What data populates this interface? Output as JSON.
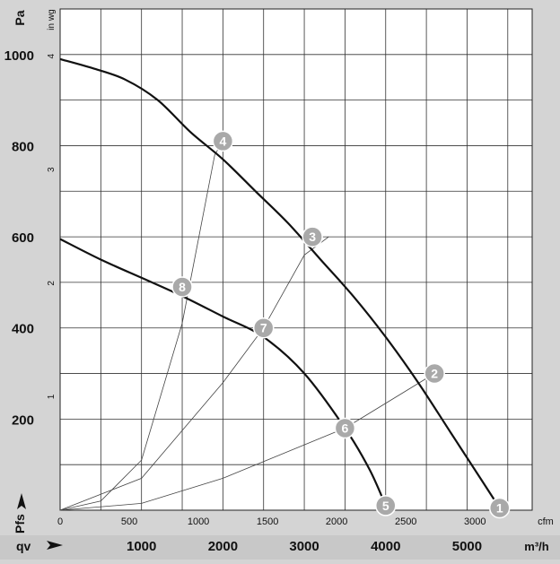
{
  "chart_data": {
    "type": "line",
    "title": "",
    "y_left_unit": "Pa",
    "y_inner_unit": "in wg",
    "x_top_unit": "cfm",
    "x_bottom_unit": "m³/h",
    "y_symbol": "Pfs",
    "x_symbol": "qv",
    "y_ticks_pa": [
      200,
      400,
      600,
      800,
      1000
    ],
    "y_ticks_inwg": [
      1,
      2,
      3,
      4
    ],
    "x_ticks_cfm": [
      0,
      500,
      1000,
      1500,
      2000,
      2500,
      3000
    ],
    "x_ticks_m3h": [
      1000,
      2000,
      3000,
      4000,
      5000
    ],
    "xlim_m3h": [
      0,
      5800
    ],
    "ylim_pa": [
      0,
      1100
    ],
    "grid": true,
    "series": [
      {
        "kind": "fan-curve",
        "x": [
          0,
          400,
          800,
          1200,
          1600,
          2000,
          2400,
          2800,
          3200,
          3600,
          4000,
          4400,
          4800,
          5200,
          5400
        ],
        "y": [
          990,
          970,
          945,
          900,
          830,
          770,
          700,
          630,
          550,
          470,
          380,
          280,
          170,
          60,
          5
        ]
      },
      {
        "kind": "fan-curve",
        "x": [
          0,
          500,
          1000,
          1500,
          2000,
          2500,
          3000,
          3500,
          3800,
          4000
        ],
        "y": [
          595,
          550,
          510,
          470,
          425,
          380,
          300,
          180,
          90,
          10
        ]
      },
      {
        "kind": "system-curve",
        "x": [
          0,
          500,
          1000,
          1500,
          1900,
          2000
        ],
        "y": [
          0,
          20,
          110,
          410,
          780,
          810
        ]
      },
      {
        "kind": "system-curve",
        "x": [
          0,
          1000,
          2000,
          2500,
          3000,
          3300
        ],
        "y": [
          0,
          70,
          280,
          400,
          560,
          600
        ]
      },
      {
        "kind": "system-curve",
        "x": [
          0,
          1000,
          2000,
          3500,
          4600
        ],
        "y": [
          0,
          15,
          70,
          180,
          300
        ]
      }
    ],
    "points": [
      {
        "label": "1",
        "x": 5400,
        "y": 5
      },
      {
        "label": "2",
        "x": 4600,
        "y": 300
      },
      {
        "label": "3",
        "x": 3100,
        "y": 600
      },
      {
        "label": "4",
        "x": 2000,
        "y": 810
      },
      {
        "label": "5",
        "x": 4000,
        "y": 10
      },
      {
        "label": "6",
        "x": 3500,
        "y": 180
      },
      {
        "label": "7",
        "x": 2500,
        "y": 400
      },
      {
        "label": "8",
        "x": 1500,
        "y": 490
      }
    ]
  }
}
